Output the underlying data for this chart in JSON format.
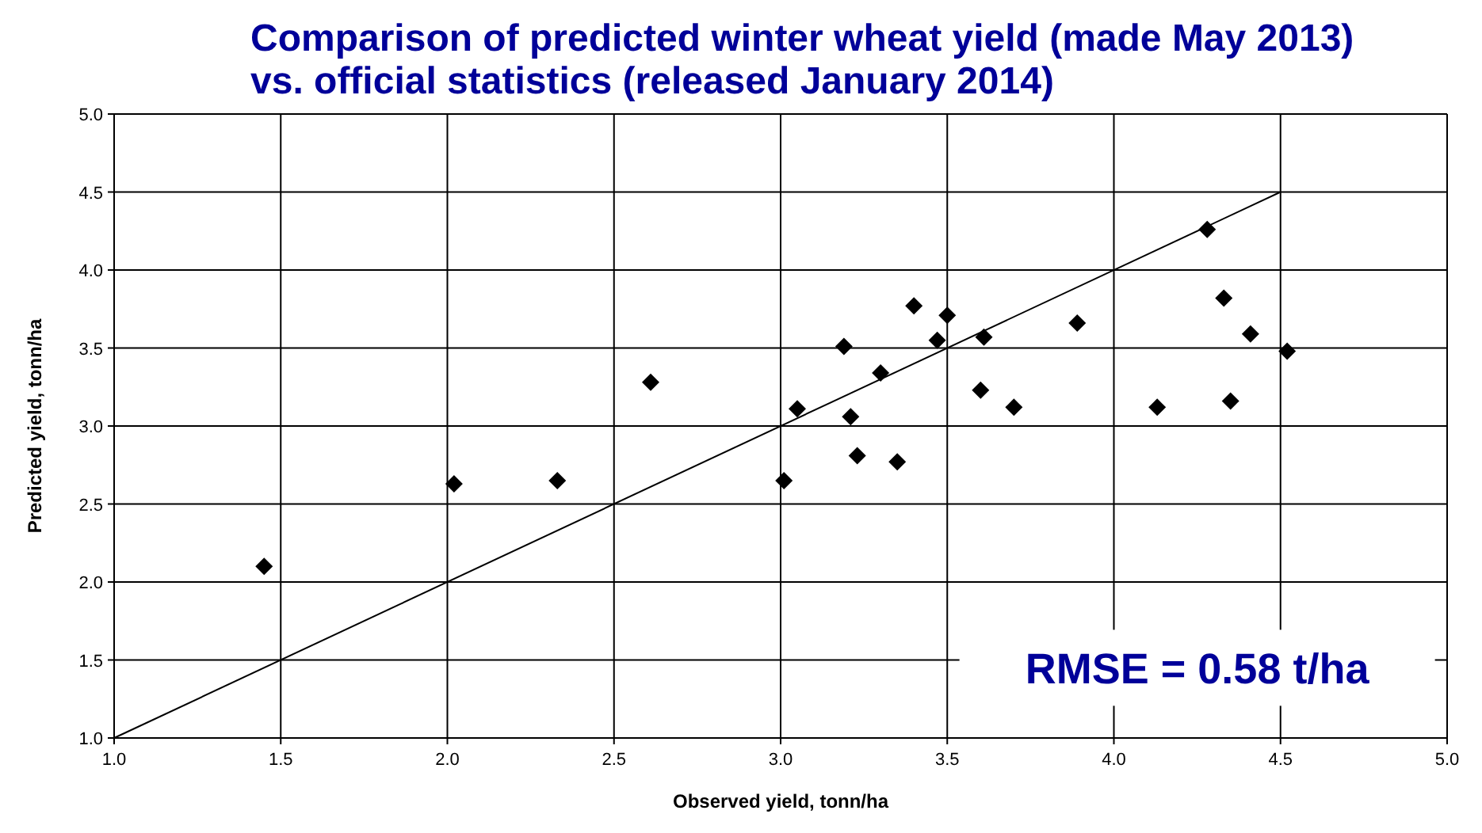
{
  "chart_data": {
    "type": "scatter",
    "title": "Comparison of predicted winter wheat yield (made May 2013) vs. official statistics (released January 2014)",
    "xlabel": "Observed yield, tonn/ha",
    "ylabel": "Predicted yield, tonn/ha",
    "xlim": [
      1.0,
      5.0
    ],
    "ylim": [
      1.0,
      5.0
    ],
    "xticks": [
      {
        "value": 1,
        "label": "1.0"
      },
      {
        "value": 1.5,
        "label": "1.5"
      },
      {
        "value": 2,
        "label": "2.0"
      },
      {
        "value": 2.5,
        "label": "2.5"
      },
      {
        "value": 3,
        "label": "3.0"
      },
      {
        "value": 3.5,
        "label": "3.5"
      },
      {
        "value": 4,
        "label": "4.0"
      },
      {
        "value": 4.5,
        "label": "4.5"
      },
      {
        "value": 5,
        "label": "5.0"
      }
    ],
    "yticks": [
      {
        "value": 1,
        "label": "1.0"
      },
      {
        "value": 1.5,
        "label": "1.5"
      },
      {
        "value": 2,
        "label": "2.0"
      },
      {
        "value": 2.5,
        "label": "2.5"
      },
      {
        "value": 3,
        "label": "3.0"
      },
      {
        "value": 3.5,
        "label": "3.5"
      },
      {
        "value": 4,
        "label": "4.0"
      },
      {
        "value": 4.5,
        "label": "4.5"
      },
      {
        "value": 5,
        "label": "5.0"
      }
    ],
    "grid": true,
    "series": [
      {
        "color": "#000000",
        "marker": "diamond",
        "x": [
          1.45,
          2.02,
          2.33,
          2.61,
          3.01,
          3.05,
          3.19,
          3.21,
          3.23,
          3.3,
          3.35,
          3.4,
          3.47,
          3.5,
          3.6,
          3.61,
          3.7,
          3.89,
          4.13,
          4.28,
          4.33,
          4.35,
          4.41,
          4.52
        ],
        "values": [
          2.1,
          2.63,
          2.65,
          3.28,
          2.65,
          3.11,
          3.51,
          3.06,
          2.81,
          3.34,
          2.77,
          3.77,
          3.55,
          3.71,
          3.23,
          3.57,
          3.12,
          3.66,
          3.12,
          4.26,
          3.82,
          3.16,
          3.59,
          3.48
        ]
      },
      {
        "type": "line",
        "color": "#000000",
        "marker": "none",
        "x": [
          1.0,
          4.5
        ],
        "values": [
          1.0,
          4.5
        ]
      }
    ],
    "annotations": [
      "RMSE = 0.58 t/ha"
    ]
  }
}
